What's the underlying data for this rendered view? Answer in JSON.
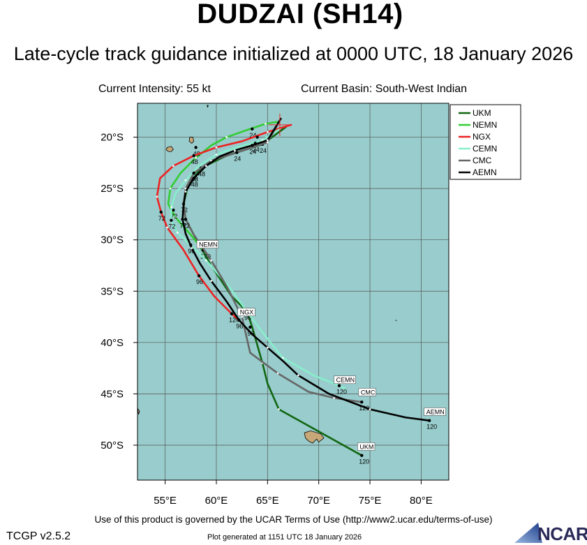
{
  "header": {
    "title": "DUDZAI (SH14)",
    "subtitle": "Late-cycle track guidance initialized at 0000 UTC, 18 January 2026",
    "current_intensity": "Current Intensity: 55 kt",
    "current_basin": "Current Basin: South-West Indian"
  },
  "footer": {
    "terms": "Use of this product is governed by the UCAR Terms of Use (http://www2.ucar.edu/terms-of-use)",
    "version": "TCGP v2.5.2",
    "generated": "Plot generated at 1151 UTC   18 January 2026",
    "logo_text": "NCAR"
  },
  "colors": {
    "ocean": "#99cccc",
    "land": "#c8a878",
    "grid": "#555555",
    "UKM": "#116611",
    "NEMN": "#33cc33",
    "NGX": "#ee2222",
    "CEMN": "#88eecc",
    "CMC": "#666666",
    "AEMN": "#000000"
  },
  "chart_data": {
    "type": "line",
    "title": "DUDZAI (SH14)",
    "x_ticks": [
      55,
      60,
      65,
      70,
      75,
      80
    ],
    "x_tick_labels": [
      "55°E",
      "60°E",
      "65°E",
      "70°E",
      "75°E",
      "80°E"
    ],
    "y_ticks": [
      -20,
      -25,
      -30,
      -35,
      -40,
      -45,
      -50
    ],
    "y_tick_labels": [
      "20°S",
      "25°S",
      "30°S",
      "35°S",
      "40°S",
      "45°S",
      "50°S"
    ],
    "xlim": [
      52.3,
      82.7
    ],
    "ylim": [
      -53.4,
      -16.7
    ],
    "grid": true,
    "legend": "top-right",
    "current_position": {
      "lon": 66.2,
      "lat": -18.8
    },
    "series": [
      {
        "name": "UKM",
        "lon": [
          66.8,
          64.5,
          61.0,
          58.5,
          57.2,
          56.8,
          57.0,
          57.8,
          58.5,
          59.5,
          61.5,
          63.0,
          63.5,
          64.5,
          65.0,
          66.1,
          74.2
        ],
        "lat": [
          -19.0,
          -20.7,
          -21.8,
          -23.0,
          -24.8,
          -26.5,
          -28.0,
          -29.5,
          -30.8,
          -32.5,
          -35.5,
          -37.0,
          -38.5,
          -42.0,
          -44.0,
          -46.5,
          -51.0
        ],
        "marks": [
          {
            "text": "24",
            "lon": 64.5,
            "lat": -20.7
          },
          {
            "text": "48",
            "lon": 58.5,
            "lat": -23.0
          },
          {
            "text": "72",
            "lon": 56.8,
            "lat": -26.5
          },
          {
            "text": "96",
            "lon": 63.0,
            "lat": -37.0
          },
          {
            "text": "120",
            "lon": 74.2,
            "lat": -51.0
          }
        ]
      },
      {
        "name": "NEMN",
        "lon": [
          66.0,
          64.8,
          63.0,
          61.0,
          59.5,
          58.0,
          56.5,
          55.5,
          55.3,
          56.0,
          57.5,
          58.7
        ],
        "lat": [
          -18.5,
          -18.7,
          -19.3,
          -20.0,
          -20.8,
          -22.0,
          -23.5,
          -25.0,
          -26.5,
          -27.8,
          -29.5,
          -31.0
        ],
        "marks": [
          {
            "text": "24",
            "lon": 63.5,
            "lat": -19.2
          },
          {
            "text": "48",
            "lon": 58.0,
            "lat": -21.0
          },
          {
            "text": "72",
            "lon": 55.8,
            "lat": -27.1
          },
          {
            "text": "120",
            "lon": 58.7,
            "lat": -31.0
          }
        ]
      },
      {
        "name": "NGX",
        "lon": [
          67.3,
          65.0,
          62.5,
          60.0,
          57.8,
          55.8,
          54.5,
          54.2,
          54.6,
          55.2,
          56.8,
          58.3,
          59.8,
          61.5,
          62.2
        ],
        "lat": [
          -18.8,
          -19.5,
          -20.4,
          -21.0,
          -21.8,
          -22.8,
          -24.0,
          -25.8,
          -27.3,
          -28.8,
          -31.0,
          -33.5,
          -35.5,
          -37.2,
          -37.8
        ],
        "marks": [
          {
            "text": "24",
            "lon": 64.0,
            "lat": -20.0
          },
          {
            "text": "48",
            "lon": 57.8,
            "lat": -21.8
          },
          {
            "text": "72",
            "lon": 54.6,
            "lat": -27.3
          },
          {
            "text": "96",
            "lon": 58.3,
            "lat": -33.5
          },
          {
            "text": "120",
            "lon": 61.5,
            "lat": -37.2
          }
        ]
      },
      {
        "name": "CEMN",
        "lon": [
          66.2,
          64.5,
          62.0,
          60.0,
          58.3,
          57.0,
          56.0,
          55.6,
          55.6,
          56.2,
          57.5,
          59.0,
          61.2,
          63.0,
          64.5,
          66.5,
          69.5,
          72.0,
          72.6
        ],
        "lat": [
          -19.2,
          -20.3,
          -21.0,
          -21.7,
          -22.8,
          -24.2,
          -25.5,
          -26.8,
          -28.1,
          -29.3,
          -30.5,
          -32.0,
          -34.5,
          -37.0,
          -39.0,
          -41.5,
          -43.2,
          -44.2,
          -44.5
        ],
        "marks": [
          {
            "text": "24",
            "lon": 63.8,
            "lat": -20.6
          },
          {
            "text": "48",
            "lon": 57.8,
            "lat": -23.5
          },
          {
            "text": "72",
            "lon": 55.6,
            "lat": -28.1
          },
          {
            "text": "96",
            "lon": 57.5,
            "lat": -30.5
          },
          {
            "text": "120",
            "lon": 72.0,
            "lat": -44.2
          }
        ]
      },
      {
        "name": "CMC",
        "lon": [
          66.0,
          65.0,
          62.0,
          59.5,
          57.8,
          57.0,
          56.8,
          57.0,
          57.8,
          59.5,
          61.0,
          62.5,
          63.3,
          66.0,
          69.0,
          71.5,
          74.2
        ],
        "lat": [
          -18.7,
          -20.5,
          -21.5,
          -22.3,
          -23.5,
          -25.0,
          -26.5,
          -28.0,
          -29.5,
          -32.0,
          -34.5,
          -37.5,
          -41.0,
          -43.0,
          -44.8,
          -45.4,
          -45.8
        ],
        "marks": [
          {
            "text": "24",
            "lon": 62.0,
            "lat": -21.5
          },
          {
            "text": "48",
            "lon": 57.8,
            "lat": -23.5
          },
          {
            "text": "72",
            "lon": 57.0,
            "lat": -28.0
          },
          {
            "text": "96",
            "lon": 63.3,
            "lat": -38.5
          },
          {
            "text": "120",
            "lon": 74.2,
            "lat": -45.8
          }
        ]
      },
      {
        "name": "AEMN",
        "lon": [
          66.3,
          65.0,
          63.5,
          61.8,
          60.3,
          59.0,
          57.8,
          57.0,
          56.8,
          56.7,
          57.0,
          57.6,
          58.4,
          59.5,
          61.0,
          62.2,
          63.5,
          65.0,
          66.5,
          68.0,
          71.0,
          75.0,
          78.5,
          80.8
        ],
        "lat": [
          -18.2,
          -20.3,
          -20.8,
          -21.3,
          -21.9,
          -22.8,
          -24.0,
          -25.3,
          -26.6,
          -28.0,
          -29.4,
          -30.8,
          -32.3,
          -34.0,
          -36.0,
          -37.8,
          -39.2,
          -40.5,
          -41.8,
          -43.2,
          -45.0,
          -46.5,
          -47.3,
          -47.6
        ],
        "marks": [
          {
            "text": "24",
            "lon": 63.5,
            "lat": -20.8
          },
          {
            "text": "48",
            "lon": 57.8,
            "lat": -24.0
          },
          {
            "text": "72",
            "lon": 56.7,
            "lat": -28.0
          },
          {
            "text": "96",
            "lon": 62.2,
            "lat": -37.8
          },
          {
            "text": "120",
            "lon": 80.8,
            "lat": -47.6
          }
        ]
      }
    ],
    "end_tags": [
      {
        "text": "NEMN",
        "lon": 58.3,
        "lat": -30.6
      },
      {
        "text": "NGX",
        "lon": 62.3,
        "lat": -37.2
      },
      {
        "text": "CEMN",
        "lon": 71.7,
        "lat": -43.8
      },
      {
        "text": "CMC",
        "lon": 74.1,
        "lat": -45.0
      },
      {
        "text": "AEMN",
        "lon": 80.5,
        "lat": -46.9
      },
      {
        "text": "UKM",
        "lon": 74.0,
        "lat": -50.3
      }
    ],
    "islands": [
      {
        "name": "madagascar-coast",
        "lon": [
          52.3,
          52.5,
          52.4
        ],
        "lat": [
          -46.4,
          -46.7,
          -47.0
        ]
      },
      {
        "name": "tromelin",
        "lon": [
          59.1,
          59.2,
          59.15
        ],
        "lat": [
          -16.9,
          -16.9,
          -17.1
        ]
      },
      {
        "name": "reunion",
        "lon": [
          55.2,
          55.6,
          55.8,
          55.6,
          55.3,
          55.1
        ],
        "lat": [
          -21.0,
          -20.9,
          -21.2,
          -21.4,
          -21.4,
          -21.2
        ]
      },
      {
        "name": "mauritius",
        "lon": [
          57.4,
          57.7,
          57.8,
          57.6,
          57.35
        ],
        "lat": [
          -20.0,
          -20.0,
          -20.4,
          -20.6,
          -20.4
        ]
      },
      {
        "name": "kerguelen",
        "lon": [
          68.6,
          69.2,
          70.2,
          70.5,
          70.0,
          69.8,
          69.4,
          69.0,
          68.7
        ],
        "lat": [
          -48.8,
          -48.6,
          -48.9,
          -49.3,
          -49.7,
          -49.4,
          -49.8,
          -49.6,
          -49.3
        ]
      },
      {
        "name": "amsterdam",
        "lon": [
          77.5,
          77.6
        ],
        "lat": [
          -37.8,
          -37.9
        ]
      }
    ]
  }
}
